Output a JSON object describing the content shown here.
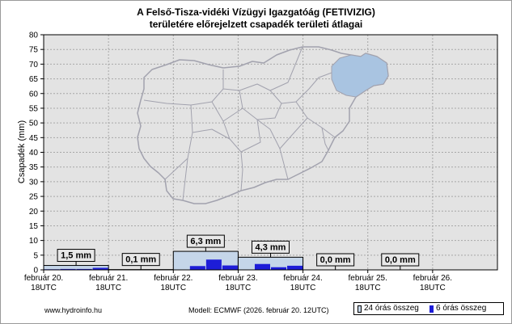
{
  "chart_data": {
    "type": "bar",
    "title": "A Felső-Tisza-vidéki Vízügyi Igazgatóág (FETIVIZIG)",
    "subtitle": "területére előrejelzett csapadék területi átlagai",
    "ylabel": "Csapadék (mm)",
    "xlabel": "",
    "ylim": [
      0,
      80
    ],
    "yticks": [
      0,
      5,
      10,
      15,
      20,
      25,
      30,
      35,
      40,
      45,
      50,
      55,
      60,
      65,
      70,
      75,
      80
    ],
    "xlim": [
      0,
      168
    ],
    "xticks": [
      {
        "x": 0,
        "label1": "február 20.",
        "label2": "18UTC"
      },
      {
        "x": 24,
        "label1": "február 21.",
        "label2": "18UTC"
      },
      {
        "x": 48,
        "label1": "február 22.",
        "label2": "18UTC"
      },
      {
        "x": 72,
        "label1": "február 23.",
        "label2": "18UTC"
      },
      {
        "x": 96,
        "label1": "február 24.",
        "label2": "18UTC"
      },
      {
        "x": 120,
        "label1": "február 25.",
        "label2": "18UTC"
      },
      {
        "x": 144,
        "label1": "február 26.",
        "label2": "18UTC"
      }
    ],
    "grid": true,
    "series": [
      {
        "name": "24 órás összeg",
        "color": "#c5d6e9",
        "values": [
          {
            "start": 0,
            "end": 24,
            "value": 1.5,
            "label": "1,5 mm"
          },
          {
            "start": 24,
            "end": 48,
            "value": 0.1,
            "label": "0,1 mm"
          },
          {
            "start": 48,
            "end": 72,
            "value": 6.3,
            "label": "6,3 mm"
          },
          {
            "start": 72,
            "end": 96,
            "value": 4.3,
            "label": "4,3 mm"
          },
          {
            "start": 96,
            "end": 120,
            "value": 0.0,
            "label": "0,0 mm"
          },
          {
            "start": 120,
            "end": 144,
            "value": 0.0,
            "label": "0,0 mm"
          }
        ]
      },
      {
        "name": "6 órás összeg",
        "color": "#1d1dd8",
        "values": [
          {
            "start": 0,
            "end": 6,
            "value": 0.2
          },
          {
            "start": 6,
            "end": 12,
            "value": 0.3
          },
          {
            "start": 12,
            "end": 18,
            "value": 0.3
          },
          {
            "start": 18,
            "end": 24,
            "value": 0.7
          },
          {
            "start": 24,
            "end": 30,
            "value": 0.1
          },
          {
            "start": 30,
            "end": 36,
            "value": 0.0
          },
          {
            "start": 36,
            "end": 42,
            "value": 0.0
          },
          {
            "start": 42,
            "end": 48,
            "value": 0.0
          },
          {
            "start": 48,
            "end": 54,
            "value": 0.0
          },
          {
            "start": 54,
            "end": 60,
            "value": 1.3
          },
          {
            "start": 60,
            "end": 66,
            "value": 3.5
          },
          {
            "start": 66,
            "end": 72,
            "value": 1.5
          },
          {
            "start": 72,
            "end": 78,
            "value": 0.0
          },
          {
            "start": 78,
            "end": 84,
            "value": 2.0
          },
          {
            "start": 84,
            "end": 90,
            "value": 0.9
          },
          {
            "start": 90,
            "end": 96,
            "value": 1.4
          },
          {
            "start": 96,
            "end": 102,
            "value": 0.0
          },
          {
            "start": 102,
            "end": 108,
            "value": 0.0
          },
          {
            "start": 108,
            "end": 114,
            "value": 0.0
          },
          {
            "start": 114,
            "end": 120,
            "value": 0.0
          },
          {
            "start": 120,
            "end": 126,
            "value": 0.0
          },
          {
            "start": 126,
            "end": 132,
            "value": 0.0
          },
          {
            "start": 132,
            "end": 138,
            "value": 0.0
          },
          {
            "start": 138,
            "end": 144,
            "value": 0.0
          }
        ]
      }
    ],
    "legend_position": "bottom-right",
    "colors": {
      "plot_bg": "#e3e3e3",
      "grid": "#a8a8a8",
      "map_outline": "#a2a2ae",
      "region_fill": "#a9c4e1"
    }
  },
  "footer": {
    "source": "www.hydroinfo.hu",
    "model": "Modell: ECMWF (2026. február 20. 12UTC)"
  },
  "legend": {
    "item_24h": "24 órás összeg",
    "item_6h": "6 órás összeg"
  }
}
